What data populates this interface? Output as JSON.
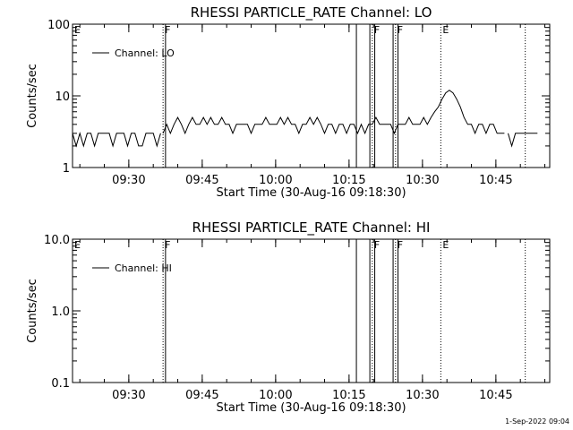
{
  "footer": {
    "timestamp": "1-Sep-2022 09:04"
  },
  "chart_data": [
    {
      "type": "line",
      "title": "RHESSI PARTICLE_RATE Channel: LO",
      "xlabel": "Start Time (30-Aug-16 09:18:30)",
      "ylabel": "Counts/sec",
      "yscale": "log",
      "xlim": [
        "09:18:30",
        "10:56:00"
      ],
      "ylim": [
        1,
        100
      ],
      "x_ticks": [
        "09:30",
        "09:45",
        "10:00",
        "10:15",
        "10:30",
        "10:45"
      ],
      "y_ticks": [
        "1",
        "10",
        "100"
      ],
      "legend": {
        "placement": "top-left",
        "entries": [
          "Channel: LO"
        ]
      },
      "annotations": [
        {
          "label": "E",
          "time": "09:18:30",
          "style": "dotted"
        },
        {
          "label": "F",
          "time": "09:37:00",
          "style": "dotted"
        },
        {
          "label": "",
          "time": "09:37:30",
          "style": "solid"
        },
        {
          "label": "",
          "time": "10:16:30",
          "style": "solid"
        },
        {
          "label": "",
          "time": "10:19:15",
          "style": "solid"
        },
        {
          "label": "F",
          "time": "10:19:45",
          "style": "dotted"
        },
        {
          "label": "",
          "time": "10:20:15",
          "style": "solid"
        },
        {
          "label": "",
          "time": "10:24:00",
          "style": "solid"
        },
        {
          "label": "F",
          "time": "10:24:30",
          "style": "dotted"
        },
        {
          "label": "",
          "time": "10:25:00",
          "style": "solid"
        },
        {
          "label": "E",
          "time": "10:33:45",
          "style": "dotted"
        },
        {
          "label": "",
          "time": "10:51:00",
          "style": "dotted"
        }
      ],
      "series": [
        {
          "name": "Channel: LO",
          "segments": [
            {
              "x": [
                "09:18:30",
                "09:19:15",
                "09:20:00",
                "09:20:45",
                "09:21:30",
                "09:22:15",
                "09:23:00",
                "09:23:45",
                "09:24:30",
                "09:25:15",
                "09:26:00",
                "09:26:45",
                "09:27:30",
                "09:28:15",
                "09:29:00",
                "09:29:45",
                "09:30:30",
                "09:31:15",
                "09:32:00",
                "09:32:45",
                "09:33:30",
                "09:34:15",
                "09:35:00",
                "09:35:45",
                "09:36:30"
              ],
              "y": [
                3,
                2,
                3,
                2,
                3,
                3,
                2,
                3,
                3,
                3,
                3,
                2,
                3,
                3,
                3,
                2,
                3,
                3,
                2,
                2,
                3,
                3,
                3,
                2,
                3
              ]
            },
            {
              "x": [
                "09:37:00",
                "09:37:45",
                "09:38:30",
                "09:39:15",
                "09:40:00",
                "09:40:45",
                "09:41:30",
                "09:42:15",
                "09:43:00",
                "09:43:45",
                "09:44:30",
                "09:45:15",
                "09:46:00",
                "09:46:45",
                "09:47:30",
                "09:48:15",
                "09:49:00",
                "09:49:45",
                "09:50:30",
                "09:51:15",
                "09:52:00",
                "09:52:45",
                "09:53:30",
                "09:54:15",
                "09:55:00",
                "09:55:45",
                "09:56:30",
                "09:57:15",
                "09:58:00",
                "09:58:45",
                "09:59:30",
                "10:00:15",
                "10:01:00",
                "10:01:45",
                "10:02:30",
                "10:03:15",
                "10:04:00",
                "10:04:45",
                "10:05:30",
                "10:06:15",
                "10:07:00",
                "10:07:45",
                "10:08:30",
                "10:09:15",
                "10:10:00",
                "10:10:45",
                "10:11:30",
                "10:12:15",
                "10:13:00",
                "10:13:45",
                "10:14:30",
                "10:15:15",
                "10:16:00",
                "10:16:45",
                "10:17:30",
                "10:18:15",
                "10:19:00",
                "10:19:45",
                "10:20:30",
                "10:21:15",
                "10:22:00",
                "10:22:45",
                "10:23:30",
                "10:24:15",
                "10:25:00",
                "10:25:45",
                "10:26:30",
                "10:27:15",
                "10:28:00",
                "10:28:45",
                "10:29:30",
                "10:30:15",
                "10:31:00",
                "10:31:45",
                "10:32:30",
                "10:33:15",
                "10:34:00",
                "10:34:45",
                "10:35:30",
                "10:36:15",
                "10:37:00",
                "10:37:45",
                "10:38:30",
                "10:39:15",
                "10:40:00",
                "10:40:45",
                "10:41:30",
                "10:42:15",
                "10:43:00",
                "10:43:45",
                "10:44:30",
                "10:45:15",
                "10:46:00",
                "10:46:45"
              ],
              "y": [
                3,
                4,
                3,
                4,
                5,
                4,
                3,
                4,
                5,
                4,
                4,
                5,
                4,
                5,
                4,
                4,
                5,
                4,
                4,
                3,
                4,
                4,
                4,
                4,
                3,
                4,
                4,
                4,
                5,
                4,
                4,
                4,
                5,
                4,
                5,
                4,
                4,
                3,
                4,
                4,
                5,
                4,
                5,
                4,
                3,
                4,
                4,
                3,
                4,
                4,
                3,
                4,
                4,
                3,
                4,
                3,
                4,
                4,
                5,
                4,
                4,
                4,
                4,
                3,
                4,
                4,
                4,
                5,
                4,
                4,
                4,
                5,
                4,
                5,
                6,
                7,
                9,
                11,
                12,
                11,
                9,
                7,
                5,
                4,
                4,
                3,
                4,
                4,
                3,
                4,
                4,
                3,
                3,
                3
              ]
            },
            {
              "x": [
                "10:47:30",
                "10:48:15",
                "10:49:00",
                "10:49:45",
                "10:50:30",
                "10:51:15",
                "10:52:00",
                "10:52:45",
                "10:53:30"
              ],
              "y": [
                3,
                2,
                3,
                3,
                3,
                3,
                3,
                3,
                3
              ]
            }
          ]
        }
      ]
    },
    {
      "type": "line",
      "title": "RHESSI PARTICLE_RATE Channel: HI",
      "xlabel": "Start Time (30-Aug-16 09:18:30)",
      "ylabel": "Counts/sec",
      "yscale": "log",
      "xlim": [
        "09:18:30",
        "10:56:00"
      ],
      "ylim": [
        0.1,
        10
      ],
      "x_ticks": [
        "09:30",
        "09:45",
        "10:00",
        "10:15",
        "10:30",
        "10:45"
      ],
      "y_ticks": [
        "0.1",
        "1.0",
        "10.0"
      ],
      "legend": {
        "placement": "top-left",
        "entries": [
          "Channel: HI"
        ]
      },
      "annotations": [
        {
          "label": "E",
          "time": "09:18:30",
          "style": "dotted"
        },
        {
          "label": "F",
          "time": "09:37:00",
          "style": "dotted"
        },
        {
          "label": "",
          "time": "09:37:30",
          "style": "solid"
        },
        {
          "label": "",
          "time": "10:16:30",
          "style": "solid"
        },
        {
          "label": "",
          "time": "10:19:15",
          "style": "solid"
        },
        {
          "label": "F",
          "time": "10:19:45",
          "style": "dotted"
        },
        {
          "label": "",
          "time": "10:20:15",
          "style": "solid"
        },
        {
          "label": "",
          "time": "10:24:00",
          "style": "solid"
        },
        {
          "label": "F",
          "time": "10:24:30",
          "style": "dotted"
        },
        {
          "label": "",
          "time": "10:25:00",
          "style": "solid"
        },
        {
          "label": "E",
          "time": "10:33:45",
          "style": "dotted"
        },
        {
          "label": "",
          "time": "10:51:00",
          "style": "dotted"
        }
      ],
      "series": [
        {
          "name": "Channel: HI",
          "segments": []
        }
      ]
    }
  ]
}
